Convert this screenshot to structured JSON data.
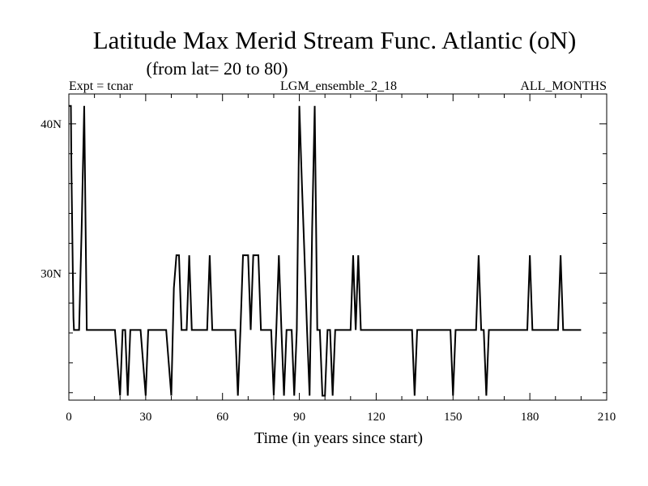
{
  "chart_data": {
    "type": "line",
    "title": "Latitude Max Merid Stream Func. Atlantic (oN)",
    "subtitle": "(from lat= 20 to 80)",
    "header_left": "Expt = tcnar",
    "header_center": "LGM_ensemble_2_18",
    "header_right": "ALL_MONTHS",
    "xlabel": "Time (in years since start)",
    "ylabel": "",
    "xlim": [
      0,
      210
    ],
    "ylim": [
      21.5,
      42
    ],
    "xticks": [
      0,
      30,
      60,
      90,
      120,
      150,
      180,
      210
    ],
    "xtick_labels": [
      "0",
      "30",
      "60",
      "90",
      "120",
      "150",
      "180",
      "210"
    ],
    "yticks": [
      30,
      40
    ],
    "ytick_labels": [
      "30N",
      "40N"
    ],
    "series": [
      {
        "color": "#000000",
        "x": [
          0,
          0.8,
          1,
          1.8,
          2,
          4,
          5,
          6,
          7,
          8,
          18,
          19,
          20,
          21,
          22,
          23,
          24,
          25,
          28,
          29,
          30,
          31,
          33,
          38,
          39,
          40,
          41,
          42,
          43,
          44,
          45,
          46,
          47,
          48,
          49,
          53,
          54,
          55,
          56,
          57,
          65,
          66,
          67,
          68,
          69,
          70,
          71,
          72,
          73,
          74,
          75,
          78,
          79,
          80,
          81,
          82,
          83,
          84,
          85,
          86,
          87,
          88,
          89,
          90,
          91,
          92,
          93,
          94,
          95,
          96,
          97,
          98,
          99,
          100,
          101,
          102,
          103,
          104,
          105,
          110,
          111,
          112,
          113,
          114,
          115,
          116,
          117,
          134,
          135,
          136,
          137,
          149,
          150,
          151,
          159,
          160,
          161,
          162,
          163,
          164,
          179,
          180,
          181,
          191,
          192,
          193,
          200
        ],
        "y": [
          41.2,
          41.2,
          37,
          27,
          26.2,
          26.2,
          33,
          41.2,
          26.2,
          26.2,
          26.2,
          24,
          21.8,
          26.2,
          26.2,
          21.8,
          26.2,
          26.2,
          26.2,
          24,
          21.8,
          26.2,
          26.2,
          26.2,
          24,
          21.8,
          29,
          31.2,
          31.2,
          26.2,
          26.2,
          26.2,
          31.2,
          26.2,
          26.2,
          26.2,
          26.2,
          31.2,
          26.2,
          26.2,
          26.2,
          21.8,
          26.2,
          31.2,
          31.2,
          31.2,
          26.2,
          31.2,
          31.2,
          31.2,
          26.2,
          26.2,
          26.2,
          21.8,
          26.2,
          31.2,
          26.2,
          21.8,
          26.2,
          26.2,
          26.2,
          21.8,
          26.2,
          41.2,
          36,
          31.2,
          26.2,
          21.8,
          33,
          41.2,
          26.2,
          26.2,
          21.8,
          21.8,
          26.2,
          26.2,
          21.8,
          26.2,
          26.2,
          26.2,
          31.2,
          26.2,
          31.2,
          26.2,
          26.2,
          26.2,
          26.2,
          26.2,
          21.8,
          26.2,
          26.2,
          26.2,
          21.8,
          26.2,
          26.2,
          31.2,
          26.2,
          26.2,
          21.8,
          26.2,
          26.2,
          31.2,
          26.2,
          26.2,
          31.2,
          26.2,
          26.2
        ]
      }
    ]
  }
}
